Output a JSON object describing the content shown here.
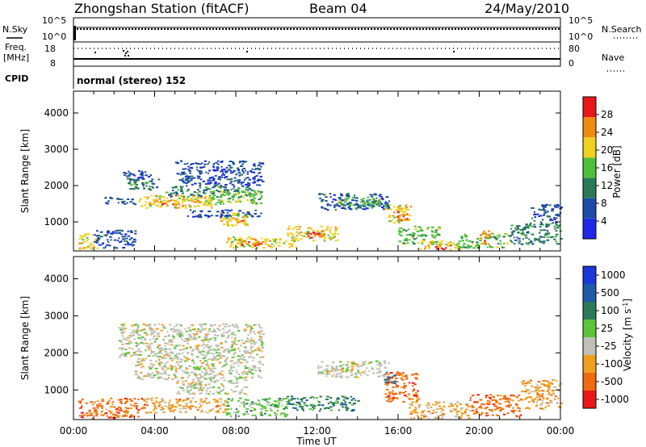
{
  "header": {
    "title": "Zhongshan Station (fitACF)",
    "beam": "Beam 04",
    "date": "24/May/2010"
  },
  "strips": {
    "nsky_label": "N.Sky",
    "nsky_ticks": [
      "10^5",
      "10^0"
    ],
    "nsearch_label": "N.Search",
    "nsearch_ticks": [
      "10^5",
      "10^0"
    ],
    "freq_label_1": "Freq.",
    "freq_label_2": "[MHz]",
    "freq_ticks": [
      "18",
      "8"
    ],
    "nave_label": "Nave",
    "nave_ticks": [
      "80",
      "0"
    ],
    "cpid_label": "CPID",
    "cpid_text": "normal (stereo) 152"
  },
  "chart_data": [
    {
      "type": "heatmap",
      "title": "",
      "xlabel": "Time UT",
      "ylabel": "Slant Range [km]",
      "x_tick_labels": [
        "00:00",
        "04:00",
        "08:00",
        "12:00",
        "16:00",
        "20:00",
        "00:00"
      ],
      "xlim": [
        0,
        24
      ],
      "ylim": [
        200,
        4600
      ],
      "y_ticks": [
        1000,
        2000,
        3000,
        4000
      ],
      "colorbar": {
        "label": "Power [dB]",
        "ticks": [
          4,
          8,
          12,
          16,
          20,
          24,
          28
        ],
        "range": [
          0,
          32
        ],
        "colors": [
          "#1f28e8",
          "#1c4aa6",
          "#2a7a5a",
          "#4fbf3a",
          "#f0d020",
          "#f08a10",
          "#e81818"
        ]
      },
      "series": [
        {
          "x0": 2.3,
          "x1": 3.8,
          "y0": 2150,
          "y1": 2450,
          "level": 1
        },
        {
          "x0": 2.6,
          "x1": 4.2,
          "y0": 1900,
          "y1": 2200,
          "level": 2
        },
        {
          "x0": 3.2,
          "x1": 6.8,
          "y0": 1400,
          "y1": 1750,
          "level": 4
        },
        {
          "x0": 4.0,
          "x1": 6.0,
          "y0": 1450,
          "y1": 1650,
          "level": 5
        },
        {
          "x0": 1.5,
          "x1": 3.0,
          "y0": 1500,
          "y1": 1700,
          "level": 1
        },
        {
          "x0": 4.5,
          "x1": 8.8,
          "y0": 1700,
          "y1": 2000,
          "level": 2
        },
        {
          "x0": 5.0,
          "x1": 9.3,
          "y0": 2000,
          "y1": 2700,
          "level": 1
        },
        {
          "x0": 6.5,
          "x1": 9.3,
          "y0": 1500,
          "y1": 1900,
          "level": 3
        },
        {
          "x0": 7.2,
          "x1": 8.6,
          "y0": 900,
          "y1": 1300,
          "level": 4
        },
        {
          "x0": 7.6,
          "x1": 8.3,
          "y0": 1000,
          "y1": 1200,
          "level": 5
        },
        {
          "x0": 5.5,
          "x1": 9.3,
          "y0": 1150,
          "y1": 1350,
          "level": 1
        },
        {
          "x0": 0.2,
          "x1": 1.2,
          "y0": 250,
          "y1": 700,
          "level": 4
        },
        {
          "x0": 1.0,
          "x1": 3.0,
          "y0": 300,
          "y1": 800,
          "level": 1
        },
        {
          "x0": 7.5,
          "x1": 11.0,
          "y0": 300,
          "y1": 600,
          "level": 4
        },
        {
          "x0": 8.0,
          "x1": 9.5,
          "y0": 350,
          "y1": 550,
          "level": 5
        },
        {
          "x0": 10.5,
          "x1": 13.0,
          "y0": 500,
          "y1": 900,
          "level": 4
        },
        {
          "x0": 11.5,
          "x1": 12.3,
          "y0": 550,
          "y1": 750,
          "level": 6
        },
        {
          "x0": 12.0,
          "x1": 15.6,
          "y0": 1350,
          "y1": 1800,
          "level": 1
        },
        {
          "x0": 13.0,
          "x1": 15.2,
          "y0": 1400,
          "y1": 1700,
          "level": 3
        },
        {
          "x0": 15.3,
          "x1": 16.6,
          "y0": 1000,
          "y1": 1500,
          "level": 4
        },
        {
          "x0": 15.9,
          "x1": 16.5,
          "y0": 1000,
          "y1": 1300,
          "level": 5
        },
        {
          "x0": 16.0,
          "x1": 18.0,
          "y0": 400,
          "y1": 900,
          "level": 3
        },
        {
          "x0": 17.0,
          "x1": 19.0,
          "y0": 250,
          "y1": 500,
          "level": 4
        },
        {
          "x0": 17.8,
          "x1": 18.6,
          "y0": 250,
          "y1": 400,
          "level": 6
        },
        {
          "x0": 19.0,
          "x1": 21.5,
          "y0": 300,
          "y1": 700,
          "level": 3
        },
        {
          "x0": 20.0,
          "x1": 20.5,
          "y0": 400,
          "y1": 800,
          "level": 5
        },
        {
          "x0": 21.5,
          "x1": 24.0,
          "y0": 400,
          "y1": 1000,
          "level": 2
        },
        {
          "x0": 22.5,
          "x1": 24.0,
          "y0": 1000,
          "y1": 1500,
          "level": 1
        }
      ]
    },
    {
      "type": "heatmap",
      "title": "",
      "xlabel": "Time UT",
      "ylabel": "Slant Range [km]",
      "x_tick_labels": [
        "00:00",
        "04:00",
        "08:00",
        "12:00",
        "16:00",
        "20:00",
        "00:00"
      ],
      "xlim": [
        0,
        24
      ],
      "ylim": [
        200,
        4600
      ],
      "y_ticks": [
        1000,
        2000,
        3000,
        4000
      ],
      "colorbar": {
        "label": "Velocity [m s^-1]",
        "ticks": [
          "1000",
          "500",
          "100",
          "25",
          "-25",
          "-100",
          "-500",
          "-1000"
        ],
        "colors": [
          "#1c38d8",
          "#1d5aa8",
          "#2a7a5a",
          "#5cc43a",
          "#c0c0b8",
          "#f0a020",
          "#f06a10",
          "#e81818"
        ]
      },
      "series": [
        {
          "x0": 2.2,
          "x1": 9.3,
          "y0": 1900,
          "y1": 2800,
          "level": 4
        },
        {
          "x0": 3.0,
          "x1": 9.3,
          "y0": 1300,
          "y1": 1900,
          "level": 4
        },
        {
          "x0": 5.0,
          "x1": 8.5,
          "y0": 900,
          "y1": 1300,
          "level": 4
        },
        {
          "x0": 12.0,
          "x1": 15.5,
          "y0": 1350,
          "y1": 1800,
          "level": 4
        },
        {
          "x0": 0.2,
          "x1": 3.5,
          "y0": 250,
          "y1": 800,
          "level": 6
        },
        {
          "x0": 3.5,
          "x1": 7.5,
          "y0": 400,
          "y1": 800,
          "level": 5
        },
        {
          "x0": 7.5,
          "x1": 10.5,
          "y0": 300,
          "y1": 800,
          "level": 3
        },
        {
          "x0": 10.5,
          "x1": 14.0,
          "y0": 450,
          "y1": 850,
          "level": 2
        },
        {
          "x0": 15.3,
          "x1": 17.0,
          "y0": 700,
          "y1": 1500,
          "level": 6
        },
        {
          "x0": 15.3,
          "x1": 15.8,
          "y0": 1200,
          "y1": 1500,
          "level": 1
        },
        {
          "x0": 16.5,
          "x1": 19.5,
          "y0": 250,
          "y1": 700,
          "level": 5
        },
        {
          "x0": 19.5,
          "x1": 22.0,
          "y0": 300,
          "y1": 900,
          "level": 6
        },
        {
          "x0": 22.0,
          "x1": 24.0,
          "y0": 500,
          "y1": 1300,
          "level": 5
        }
      ]
    }
  ]
}
